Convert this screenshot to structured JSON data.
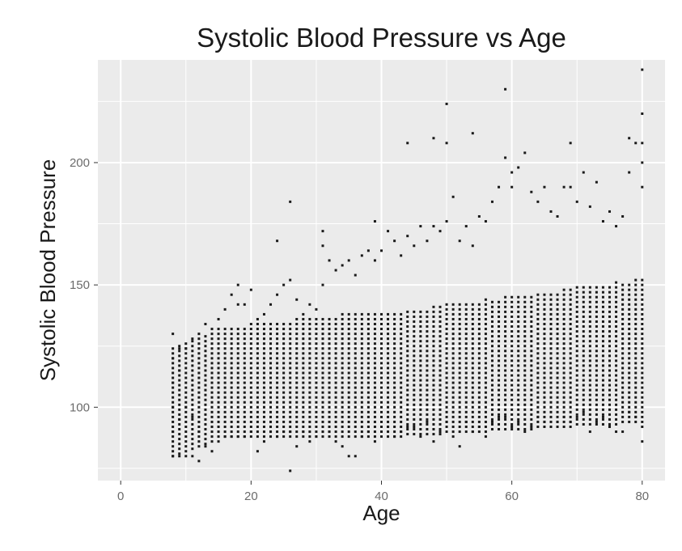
{
  "chart_data": {
    "type": "scatter",
    "title": "Systolic Blood Pressure vs Age",
    "xlabel": "Age",
    "ylabel": "Systolic Blood Pressure",
    "xlim": [
      -3.5,
      83.5
    ],
    "ylim": [
      70,
      242
    ],
    "x_ticks": [
      0,
      20,
      40,
      60,
      80
    ],
    "y_ticks": [
      100,
      150,
      200
    ],
    "x_tick_labels": [
      "0",
      "20",
      "40",
      "60",
      "80"
    ],
    "y_tick_labels": [
      "100",
      "150",
      "200"
    ],
    "grid": true,
    "panel_background": "#ebebeb",
    "grid_color": "#ffffff",
    "point_color": "#1a1a1a",
    "x_range_observed": [
      8,
      80
    ],
    "y_range_observed": [
      74,
      238
    ],
    "points": [
      [
        8,
        80
      ],
      [
        8,
        90
      ],
      [
        8,
        100
      ],
      [
        8,
        110
      ],
      [
        8,
        120
      ],
      [
        8,
        130
      ],
      [
        9,
        80
      ],
      [
        9,
        95
      ],
      [
        9,
        115
      ],
      [
        9,
        124
      ],
      [
        10,
        80
      ],
      [
        10,
        100
      ],
      [
        10,
        124
      ],
      [
        11,
        80
      ],
      [
        11,
        96
      ],
      [
        11,
        128
      ],
      [
        12,
        78
      ],
      [
        12,
        90
      ],
      [
        12,
        130
      ],
      [
        13,
        84
      ],
      [
        13,
        134
      ],
      [
        14,
        82
      ],
      [
        14,
        132
      ],
      [
        15,
        86
      ],
      [
        15,
        136
      ],
      [
        16,
        88
      ],
      [
        16,
        140
      ],
      [
        17,
        146
      ],
      [
        17,
        88
      ],
      [
        18,
        150
      ],
      [
        18,
        142
      ],
      [
        18,
        88
      ],
      [
        19,
        142
      ],
      [
        19,
        88
      ],
      [
        20,
        148
      ],
      [
        20,
        90
      ],
      [
        21,
        82
      ],
      [
        21,
        136
      ],
      [
        22,
        86
      ],
      [
        22,
        138
      ],
      [
        23,
        142
      ],
      [
        23,
        90
      ],
      [
        24,
        168
      ],
      [
        24,
        146
      ],
      [
        24,
        88
      ],
      [
        25,
        150
      ],
      [
        25,
        90
      ],
      [
        26,
        184
      ],
      [
        26,
        74
      ],
      [
        26,
        152
      ],
      [
        26,
        90
      ],
      [
        27,
        84
      ],
      [
        27,
        144
      ],
      [
        28,
        138
      ],
      [
        28,
        90
      ],
      [
        29,
        142
      ],
      [
        29,
        86
      ],
      [
        30,
        140
      ],
      [
        30,
        88
      ],
      [
        31,
        172
      ],
      [
        31,
        166
      ],
      [
        31,
        150
      ],
      [
        31,
        90
      ],
      [
        32,
        160
      ],
      [
        32,
        90
      ],
      [
        33,
        156
      ],
      [
        33,
        86
      ],
      [
        34,
        158
      ],
      [
        34,
        84
      ],
      [
        35,
        160
      ],
      [
        35,
        80
      ],
      [
        36,
        154
      ],
      [
        36,
        80
      ],
      [
        37,
        162
      ],
      [
        37,
        88
      ],
      [
        38,
        164
      ],
      [
        38,
        90
      ],
      [
        39,
        176
      ],
      [
        39,
        160
      ],
      [
        39,
        86
      ],
      [
        40,
        164
      ],
      [
        40,
        90
      ],
      [
        41,
        172
      ],
      [
        41,
        92
      ],
      [
        42,
        168
      ],
      [
        42,
        88
      ],
      [
        43,
        162
      ],
      [
        43,
        90
      ],
      [
        44,
        208
      ],
      [
        44,
        170
      ],
      [
        44,
        92
      ],
      [
        45,
        166
      ],
      [
        45,
        92
      ],
      [
        46,
        174
      ],
      [
        46,
        88
      ],
      [
        47,
        168
      ],
      [
        47,
        94
      ],
      [
        48,
        210
      ],
      [
        48,
        174
      ],
      [
        48,
        86
      ],
      [
        49,
        172
      ],
      [
        49,
        90
      ],
      [
        50,
        224
      ],
      [
        50,
        208
      ],
      [
        50,
        176
      ],
      [
        50,
        94
      ],
      [
        51,
        186
      ],
      [
        51,
        88
      ],
      [
        52,
        168
      ],
      [
        52,
        84
      ],
      [
        53,
        174
      ],
      [
        53,
        94
      ],
      [
        54,
        212
      ],
      [
        54,
        166
      ],
      [
        54,
        90
      ],
      [
        55,
        178
      ],
      [
        55,
        92
      ],
      [
        56,
        176
      ],
      [
        56,
        88
      ],
      [
        57,
        184
      ],
      [
        57,
        94
      ],
      [
        58,
        190
      ],
      [
        58,
        96
      ],
      [
        59,
        230
      ],
      [
        59,
        202
      ],
      [
        59,
        96
      ],
      [
        60,
        196
      ],
      [
        60,
        190
      ],
      [
        60,
        92
      ],
      [
        61,
        198
      ],
      [
        61,
        94
      ],
      [
        62,
        204
      ],
      [
        62,
        90
      ],
      [
        63,
        188
      ],
      [
        63,
        92
      ],
      [
        64,
        184
      ],
      [
        64,
        96
      ],
      [
        65,
        190
      ],
      [
        65,
        94
      ],
      [
        66,
        180
      ],
      [
        66,
        92
      ],
      [
        67,
        178
      ],
      [
        67,
        94
      ],
      [
        68,
        190
      ],
      [
        68,
        96
      ],
      [
        69,
        208
      ],
      [
        69,
        190
      ],
      [
        69,
        94
      ],
      [
        70,
        184
      ],
      [
        70,
        96
      ],
      [
        71,
        196
      ],
      [
        71,
        98
      ],
      [
        72,
        182
      ],
      [
        72,
        90
      ],
      [
        73,
        192
      ],
      [
        73,
        94
      ],
      [
        74,
        176
      ],
      [
        74,
        96
      ],
      [
        75,
        180
      ],
      [
        75,
        92
      ],
      [
        76,
        174
      ],
      [
        76,
        90
      ],
      [
        77,
        178
      ],
      [
        77,
        90
      ],
      [
        78,
        210
      ],
      [
        78,
        196
      ],
      [
        78,
        98
      ],
      [
        79,
        208
      ],
      [
        79,
        96
      ],
      [
        80,
        238
      ],
      [
        80,
        220
      ],
      [
        80,
        208
      ],
      [
        80,
        200
      ],
      [
        80,
        190
      ],
      [
        80,
        86
      ],
      [
        80,
        92
      ]
    ]
  }
}
